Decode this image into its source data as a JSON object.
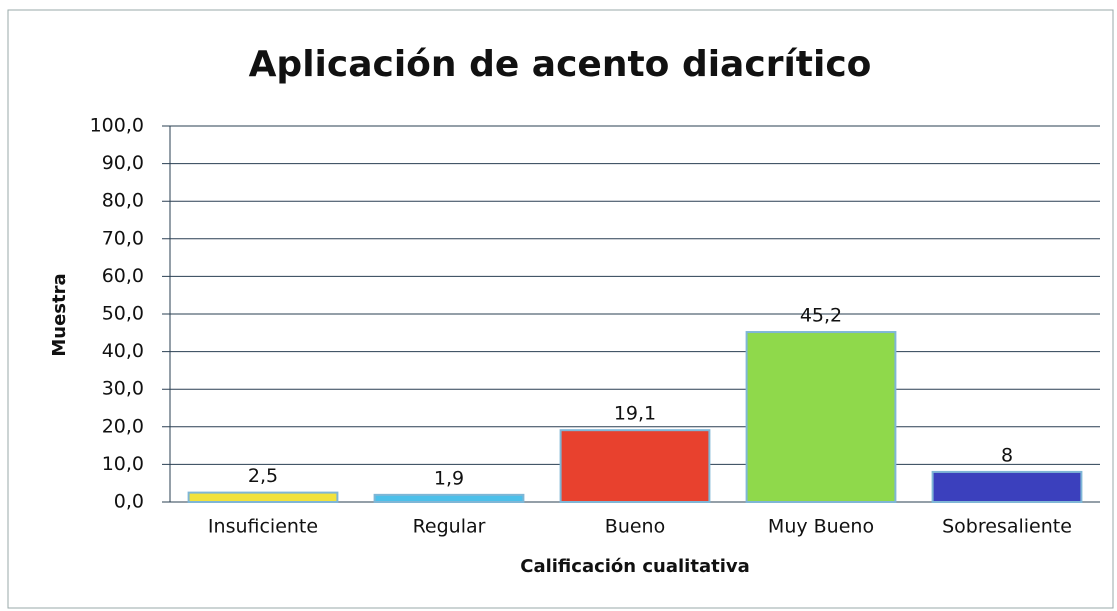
{
  "chart_data": {
    "type": "bar",
    "title": "Aplicación de acento diacrítico",
    "x_label": "Calificación  cualitativa",
    "y_label": "Muestra",
    "categories": [
      "Insuficiente",
      "Regular",
      "Bueno",
      "Muy Bueno",
      "Sobresaliente"
    ],
    "values": [
      2.5,
      1.9,
      19.1,
      45.2,
      8
    ],
    "value_labels": [
      "2,5",
      "1,9",
      "19,1",
      "45,2",
      "8"
    ],
    "colors": [
      "#f2e23c",
      "#4cc0ea",
      "#e8412e",
      "#8fd94b",
      "#3b40bd"
    ],
    "ylim": [
      0,
      100
    ],
    "yticks": [
      {
        "value": 0,
        "label": "0,0"
      },
      {
        "value": 10,
        "label": "10,0"
      },
      {
        "value": 20,
        "label": "20,0"
      },
      {
        "value": 30,
        "label": "30,0"
      },
      {
        "value": 40,
        "label": "40,0"
      },
      {
        "value": 50,
        "label": "50,0"
      },
      {
        "value": 60,
        "label": "60,0"
      },
      {
        "value": 70,
        "label": "70,0"
      },
      {
        "value": 80,
        "label": "80,0"
      },
      {
        "value": 90,
        "label": "90,0"
      },
      {
        "value": 100,
        "label": "100,0"
      }
    ],
    "grid": true
  }
}
